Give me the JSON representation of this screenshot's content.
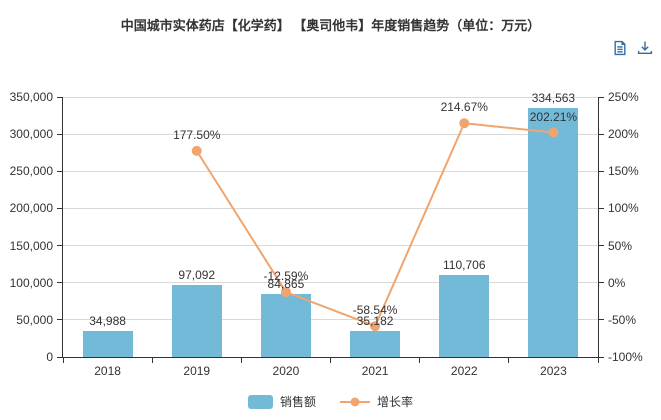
{
  "title": "中国城市实体药店【化学药】 【奥司他韦】年度销售趋势（单位：万元）",
  "colors": {
    "bar": "#73b9d8",
    "line": "#f0a56e",
    "axis": "#333333",
    "grid": "#d9d9d9",
    "text": "#333333",
    "toolbox": "#2f6ea5"
  },
  "toolbox": {
    "data_view_tooltip": "数据视图",
    "download_tooltip": "保存为图片"
  },
  "legend": [
    {
      "label": "销售额",
      "type": "bar"
    },
    {
      "label": "增长率",
      "type": "line"
    }
  ],
  "chart_data": {
    "type": "bar+line",
    "title": "中国城市实体药店【化学药】 【奥司他韦】年度销售趋势（单位：万元）",
    "categories": [
      "2018",
      "2019",
      "2020",
      "2021",
      "2022",
      "2023"
    ],
    "series": [
      {
        "name": "销售额",
        "type": "bar",
        "axis": "left",
        "values": [
          34988,
          97092,
          84865,
          35182,
          110706,
          334563
        ],
        "labels": [
          "34,988",
          "97,092",
          "84,865",
          "35,182",
          "110,706",
          "334,563"
        ]
      },
      {
        "name": "增长率",
        "type": "line",
        "axis": "right",
        "values": [
          null,
          177.5,
          -12.59,
          -58.54,
          214.67,
          202.21
        ],
        "labels": [
          null,
          "177.50%",
          "-12.59%",
          "-58.54%",
          "214.67%",
          "202.21%"
        ]
      }
    ],
    "y_left": {
      "min": 0,
      "max": 350000,
      "step": 50000,
      "tick_labels": [
        "0",
        "50,000",
        "100,000",
        "150,000",
        "200,000",
        "250,000",
        "300,000",
        "350,000"
      ]
    },
    "y_right": {
      "min": -100,
      "max": 250,
      "step": 50,
      "tick_labels": [
        "-100%",
        "-50%",
        "0%",
        "50%",
        "100%",
        "150%",
        "200%",
        "250%"
      ]
    },
    "grid": true,
    "legend_position": "bottom"
  }
}
